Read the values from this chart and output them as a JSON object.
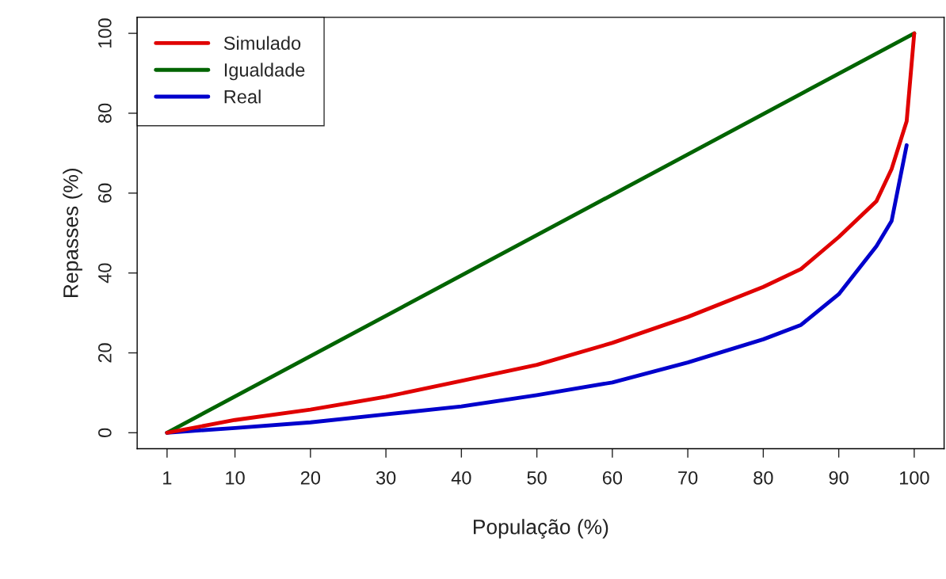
{
  "chart_data": {
    "type": "line",
    "xlabel": "População (%)",
    "ylabel": "Repasses (%)",
    "xlim": [
      -2.96,
      103.96
    ],
    "ylim": [
      -4,
      104
    ],
    "xticks": [
      1,
      10,
      20,
      30,
      40,
      50,
      60,
      70,
      80,
      90,
      100
    ],
    "yticks": [
      0,
      20,
      40,
      60,
      80,
      100
    ],
    "grid": false,
    "legend": "top left",
    "line_style": "solid",
    "marker": "none",
    "series": [
      {
        "name": "Simulado",
        "color": "#e00000",
        "x": [
          1,
          10,
          20,
          30,
          40,
          50,
          60,
          70,
          80,
          85,
          90,
          95,
          97,
          99,
          100
        ],
        "values": [
          0,
          3.2,
          5.8,
          9,
          13,
          17,
          22.5,
          29,
          36.5,
          41,
          49,
          58,
          66,
          78,
          100
        ]
      },
      {
        "name": "Igualdade",
        "color": "#006400",
        "x": [
          1,
          100
        ],
        "values": [
          0,
          100
        ]
      },
      {
        "name": "Real",
        "color": "#0000cc",
        "x": [
          1,
          10,
          20,
          30,
          40,
          50,
          60,
          70,
          80,
          85,
          90,
          95,
          97,
          99
        ],
        "values": [
          0,
          1.2,
          2.6,
          4.6,
          6.6,
          9.4,
          12.6,
          17.6,
          23.4,
          27,
          34.7,
          46.7,
          53,
          72
        ]
      }
    ]
  }
}
